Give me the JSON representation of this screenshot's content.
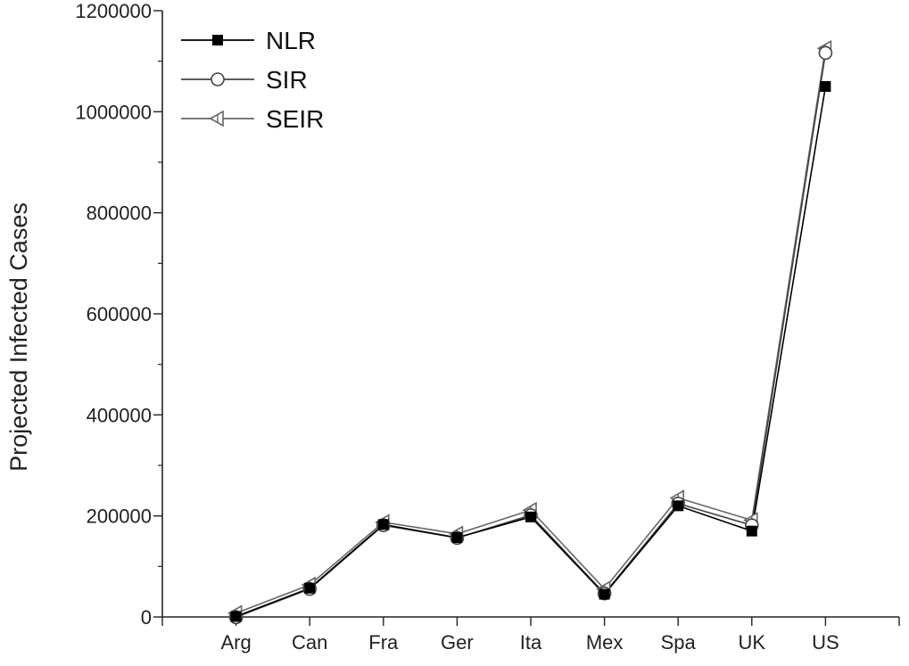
{
  "chart_data": {
    "type": "line",
    "title": "",
    "xlabel": "",
    "ylabel": "Projected Infected Cases",
    "categories": [
      "Arg",
      "Can",
      "Fra",
      "Ger",
      "Ita",
      "Mex",
      "Spa",
      "UK",
      "US"
    ],
    "ylim": [
      0,
      1200000
    ],
    "yticks": [
      "0",
      "200000",
      "400000",
      "600000",
      "800000",
      "1000000",
      "1200000"
    ],
    "grid": false,
    "legend_position": "top-left",
    "series": [
      {
        "name": "NLR",
        "marker": "filled-square",
        "color": "#000000",
        "values": [
          1000,
          57000,
          183000,
          157000,
          198000,
          45000,
          220000,
          170000,
          1050000
        ]
      },
      {
        "name": "SIR",
        "marker": "open-circle",
        "color": "#444444",
        "values": [
          3000,
          59000,
          185000,
          160000,
          205000,
          50000,
          228000,
          185000,
          1120000
        ]
      },
      {
        "name": "SEIR",
        "marker": "open-left-triangle",
        "color": "#666666",
        "values": [
          4000,
          60000,
          184000,
          161000,
          208000,
          52000,
          232000,
          188000,
          1122000
        ]
      }
    ]
  }
}
